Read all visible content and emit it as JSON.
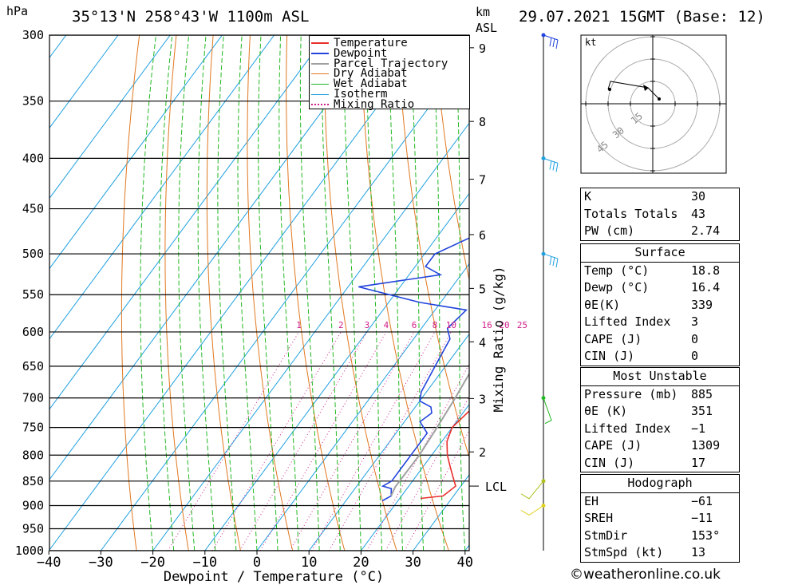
{
  "header": {
    "location": "35°13'N 258°43'W 1100m ASL",
    "datetime": "29.07.2021 15GMT (Base: 12)",
    "pressure_unit": "hPa",
    "km_unit_top": "km",
    "km_unit_bottom": "ASL"
  },
  "axes": {
    "xlabel": "Dewpoint / Temperature (°C)",
    "mixing_label": "Mixing Ratio (g/kg)",
    "x_ticks": [
      "−40",
      "−30",
      "−20",
      "−10",
      "0",
      "10",
      "20",
      "30",
      "40"
    ],
    "p_ticks": [
      "300",
      "350",
      "400",
      "450",
      "500",
      "550",
      "600",
      "650",
      "700",
      "750",
      "800",
      "850",
      "900",
      "950",
      "1000"
    ],
    "km_ticks": [
      "9",
      "8",
      "7",
      "6",
      "5",
      "4",
      "3",
      "2"
    ],
    "lcl_label": "LCL",
    "mixing_ticks": [
      "1",
      "2",
      "3",
      "4",
      "6",
      "8",
      "10",
      "16",
      "20",
      "25"
    ]
  },
  "legend": {
    "items": [
      {
        "label": "Temperature",
        "color": "#e8302e",
        "style": "solid"
      },
      {
        "label": "Dewpoint",
        "color": "#2244dd",
        "style": "solid"
      },
      {
        "label": "Parcel Trajectory",
        "color": "#a0a0a0",
        "style": "solid"
      },
      {
        "label": "Dry Adiabat",
        "color": "#e07820",
        "style": "solid"
      },
      {
        "label": "Wet Adiabat",
        "color": "#22b822",
        "style": "solid"
      },
      {
        "label": "Isotherm",
        "color": "#1fa0e0",
        "style": "solid"
      },
      {
        "label": "Mixing Ratio",
        "color": "#d0208a",
        "style": "dotted"
      }
    ]
  },
  "hodograph": {
    "unit_label": "kt",
    "ring_labels": [
      "15",
      "30",
      "45"
    ]
  },
  "indices": {
    "k": {
      "label": "K",
      "value": "30"
    },
    "tt": {
      "label": "Totals Totals",
      "value": "43"
    },
    "pw": {
      "label": "PW (cm)",
      "value": "2.74"
    }
  },
  "surface": {
    "title": "Surface",
    "rows": [
      {
        "label": "Temp (°C)",
        "value": "18.8"
      },
      {
        "label": "Dewp (°C)",
        "value": "16.4"
      },
      {
        "label": "θE(K)",
        "value": "339"
      },
      {
        "label": "Lifted Index",
        "value": "3"
      },
      {
        "label": "CAPE (J)",
        "value": "0"
      },
      {
        "label": "CIN (J)",
        "value": "0"
      }
    ]
  },
  "most_unstable": {
    "title": "Most Unstable",
    "rows": [
      {
        "label": "Pressure (mb)",
        "value": "885"
      },
      {
        "label": "θE (K)",
        "value": "351"
      },
      {
        "label": "Lifted Index",
        "value": "−1"
      },
      {
        "label": "CAPE (J)",
        "value": "1309"
      },
      {
        "label": "CIN (J)",
        "value": "17"
      }
    ]
  },
  "hodograph_table": {
    "title": "Hodograph",
    "rows": [
      {
        "label": "EH",
        "value": "−61"
      },
      {
        "label": "SREH",
        "value": "−11"
      },
      {
        "label": "StmDir",
        "value": "153°"
      },
      {
        "label": "StmSpd (kt)",
        "value": "13"
      }
    ]
  },
  "credit": "©weatheronline.co.uk",
  "chart_data": {
    "type": "line",
    "title": "35°13'N 258°43'W 1100m ASL",
    "xlabel": "Dewpoint / Temperature (°C)",
    "ylabel": "hPa",
    "xlim": [
      -40,
      40
    ],
    "ylim": [
      1000,
      300
    ],
    "y_scale": "log",
    "grid": true,
    "legend_position": "top-right",
    "series": [
      {
        "name": "Temperature",
        "color": "#e8302e",
        "points": [
          [
            24,
            885
          ],
          [
            28,
            880
          ],
          [
            29,
            860
          ],
          [
            27,
            840
          ],
          [
            25,
            820
          ],
          [
            23,
            800
          ],
          [
            21,
            775
          ],
          [
            20,
            750
          ],
          [
            21,
            720
          ],
          [
            20,
            700
          ],
          [
            18,
            660
          ],
          [
            16,
            620
          ],
          [
            15,
            600
          ],
          [
            14,
            580
          ],
          [
            14,
            560
          ],
          [
            13,
            530
          ],
          [
            12,
            500
          ],
          [
            9,
            460
          ],
          [
            6,
            430
          ],
          [
            3,
            400
          ],
          [
            2,
            380
          ],
          [
            -1,
            350
          ],
          [
            -4,
            330
          ],
          [
            -7,
            310
          ],
          [
            -8,
            300
          ]
        ]
      },
      {
        "name": "Dewpoint",
        "color": "#2244dd",
        "points": [
          [
            17,
            890
          ],
          [
            18,
            880
          ],
          [
            17,
            865
          ],
          [
            15,
            860
          ],
          [
            16,
            850
          ],
          [
            16,
            800
          ],
          [
            16,
            760
          ],
          [
            13,
            740
          ],
          [
            14,
            725
          ],
          [
            13,
            715
          ],
          [
            10,
            705
          ],
          [
            9,
            690
          ],
          [
            8,
            650
          ],
          [
            7,
            610
          ],
          [
            5,
            595
          ],
          [
            6,
            570
          ],
          [
            1,
            565
          ],
          [
            -4,
            560
          ],
          [
            -18,
            540
          ],
          [
            -4,
            525
          ],
          [
            -8,
            515
          ],
          [
            -8,
            500
          ],
          [
            -2,
            475
          ],
          [
            2,
            450
          ],
          [
            -9,
            420
          ],
          [
            -6,
            395
          ],
          [
            -15,
            370
          ],
          [
            -11,
            340
          ],
          [
            -9,
            310
          ],
          [
            -12,
            300
          ]
        ]
      },
      {
        "name": "Parcel Trajectory",
        "color": "#a0a0a0",
        "points": [
          [
            18,
            880
          ],
          [
            17.5,
            862
          ],
          [
            17.6,
            800
          ],
          [
            17.1,
            750
          ],
          [
            16.4,
            700
          ],
          [
            15.4,
            650
          ],
          [
            13.8,
            600
          ],
          [
            11.8,
            550
          ],
          [
            9.6,
            500
          ],
          [
            6.8,
            450
          ],
          [
            3.4,
            400
          ],
          [
            -1.5,
            350
          ],
          [
            -7,
            300
          ]
        ]
      }
    ],
    "km_scale": [
      {
        "km": 9,
        "p": 309
      },
      {
        "km": 8,
        "p": 367
      },
      {
        "km": 7,
        "p": 420
      },
      {
        "km": 6,
        "p": 478
      },
      {
        "km": 5,
        "p": 542
      },
      {
        "km": 4,
        "p": 614
      },
      {
        "km": 3,
        "p": 701
      },
      {
        "km": 2,
        "p": 794
      }
    ],
    "lcl_pressure": 860,
    "mixing_ratios": [
      1,
      2,
      3,
      4,
      6,
      8,
      10,
      16,
      20,
      25
    ],
    "wind_levels_hpa": [
      300,
      400,
      500,
      700,
      850,
      900
    ],
    "hodograph": {
      "ring_labels_kt": [
        15,
        30,
        45
      ],
      "trace": [
        [
          5,
          -3
        ],
        [
          2,
          -2
        ],
        [
          -3,
          4
        ],
        [
          -8,
          4
        ],
        [
          -15,
          6
        ],
        [
          -20,
          7
        ]
      ]
    }
  }
}
